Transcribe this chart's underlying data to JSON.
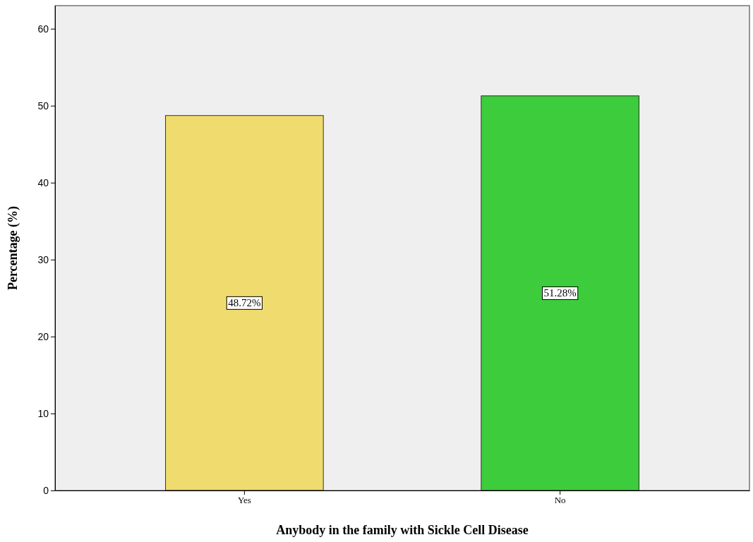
{
  "chart_data": {
    "type": "bar",
    "xlabel": "Anybody in the family with Sickle Cell Disease",
    "ylabel": "Percentage (%)",
    "categories": [
      "Yes",
      "No"
    ],
    "values": [
      48.72,
      51.28
    ],
    "colors": [
      "#f0dc6e",
      "#3ccc3c"
    ],
    "value_labels": [
      "48.72%",
      "51.28%"
    ],
    "ylim": [
      0,
      63
    ],
    "yticks": [
      0,
      10,
      20,
      30,
      40,
      50,
      60
    ],
    "grid": false
  }
}
